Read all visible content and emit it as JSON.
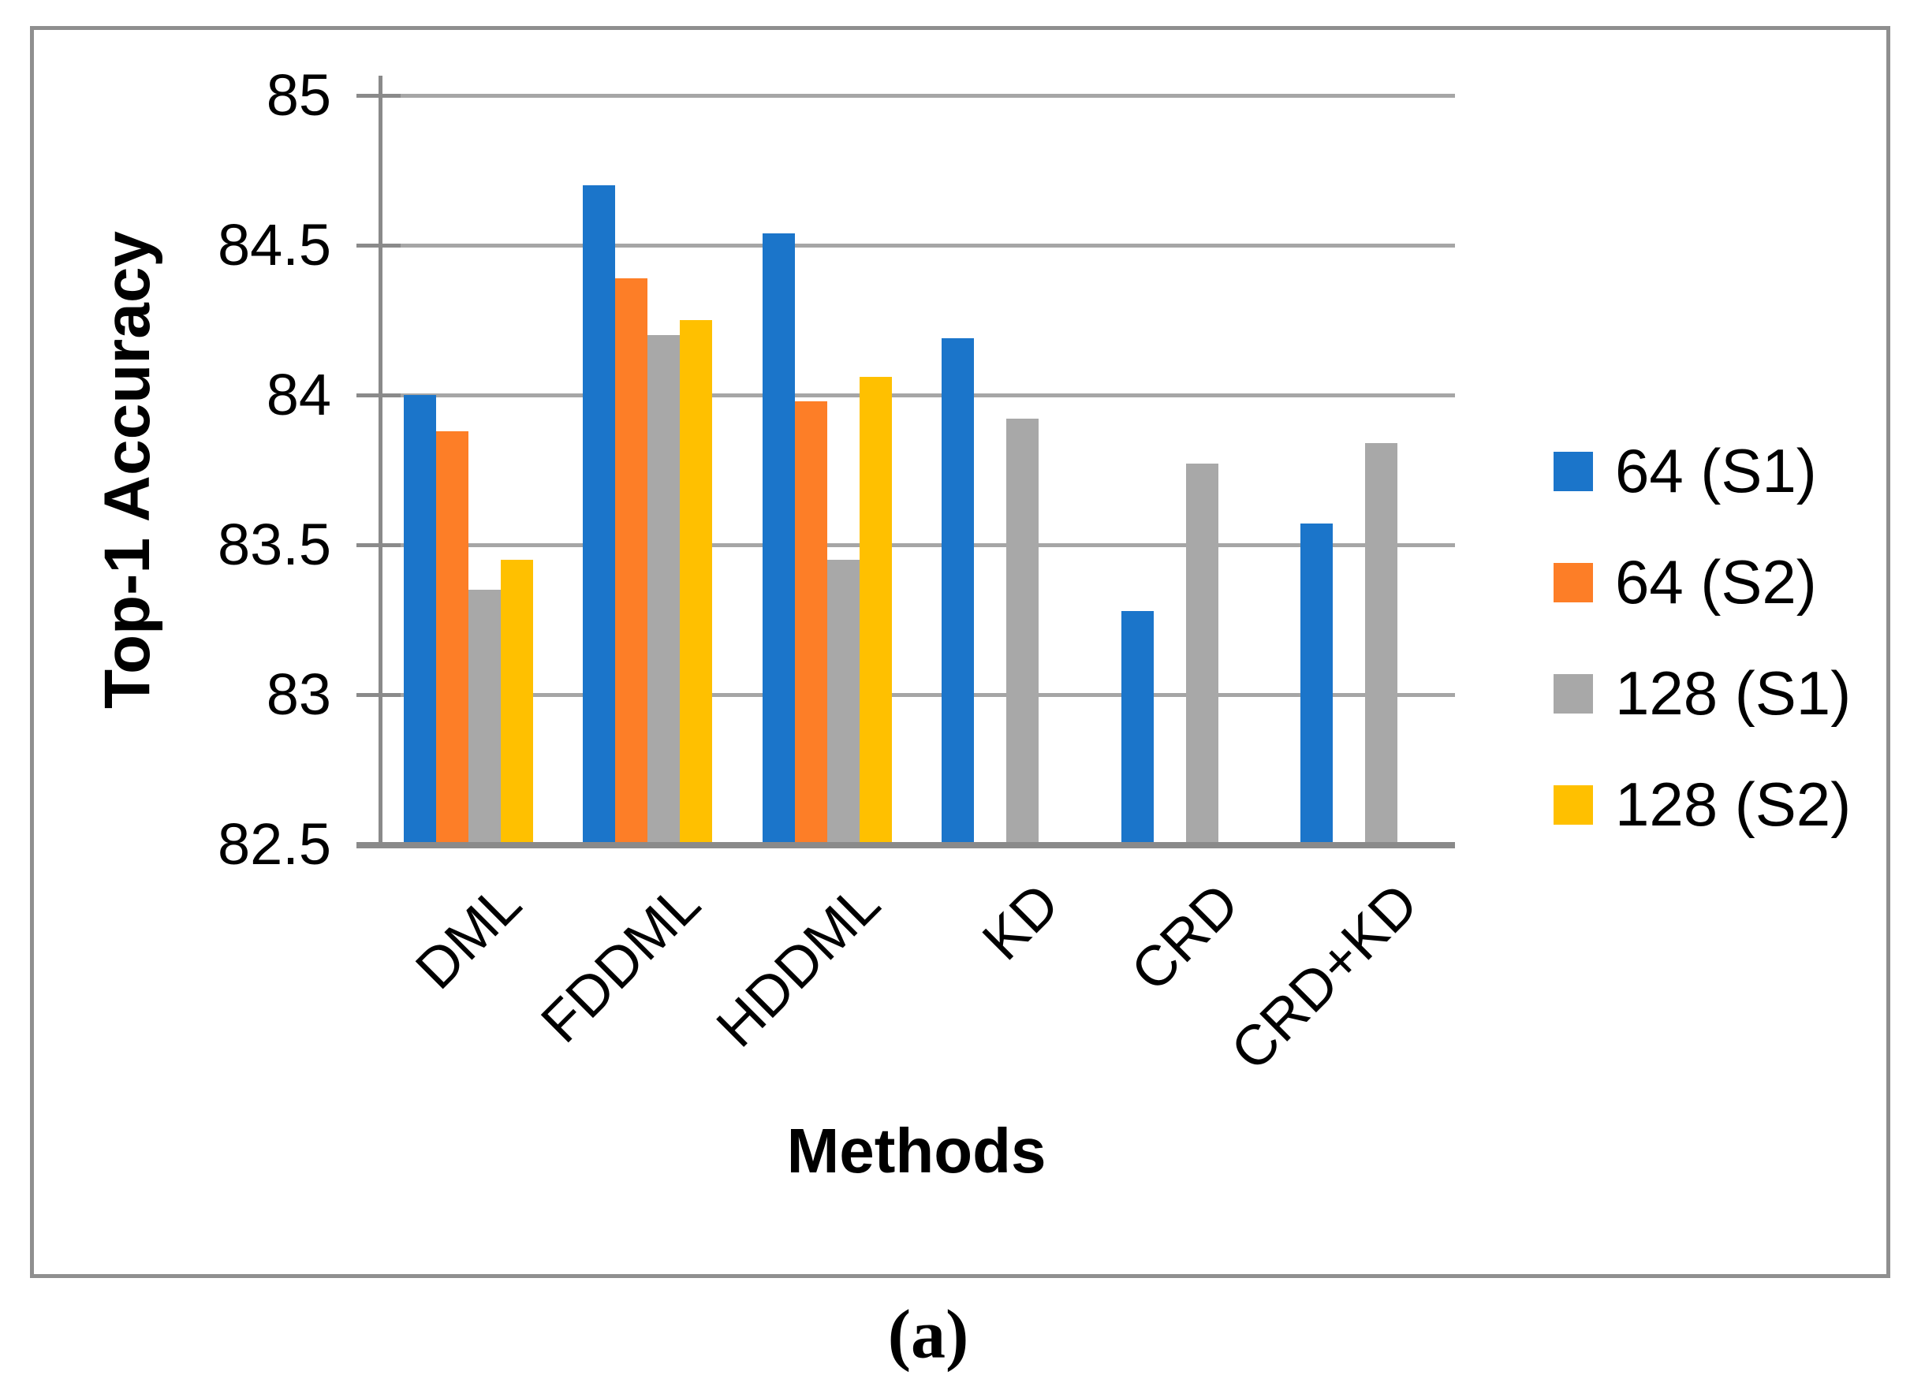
{
  "figure": {
    "caption": "(a)"
  },
  "chart_data": {
    "type": "bar",
    "title": "",
    "xlabel": "Methods",
    "ylabel": "Top-1 Accuracy",
    "ylim": [
      82.5,
      85
    ],
    "yticks": [
      "85",
      "84.5",
      "84",
      "83.5",
      "83",
      "82.5"
    ],
    "grid": true,
    "legend_position": "right",
    "categories": [
      "DML",
      "FDDML",
      "HDDML",
      "KD",
      "CRD",
      "CRD+KD"
    ],
    "series": [
      {
        "name": "64 (S1)",
        "color": "#1b75ca",
        "values": [
          84.0,
          84.7,
          84.54,
          84.19,
          83.28,
          83.57
        ]
      },
      {
        "name": "64 (S2)",
        "color": "#fd7e27",
        "values": [
          83.88,
          84.39,
          83.98,
          null,
          null,
          null
        ]
      },
      {
        "name": "128 (S1)",
        "color": "#a8a8a8",
        "values": [
          83.35,
          84.2,
          83.45,
          83.92,
          83.77,
          83.84
        ]
      },
      {
        "name": "128 (S2)",
        "color": "#ffc000",
        "values": [
          83.45,
          84.25,
          84.06,
          null,
          null,
          null
        ]
      }
    ]
  }
}
